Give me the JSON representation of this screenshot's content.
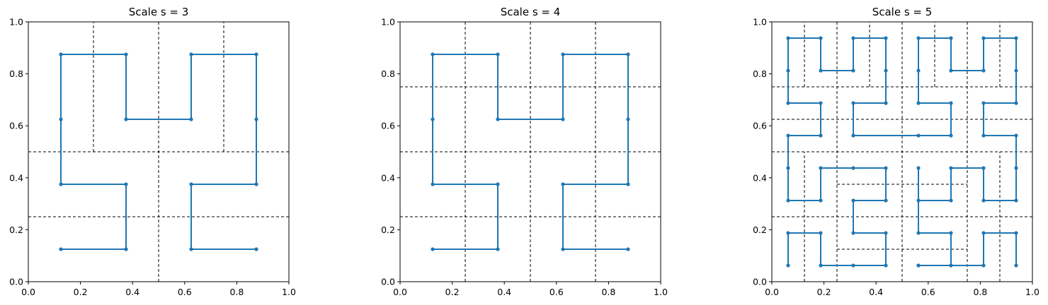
{
  "colors": {
    "curve": "#1f77b4",
    "separator": "#000000",
    "frame": "#000000"
  },
  "chart_data": [
    {
      "type": "line",
      "title": "Scale s = 3",
      "xlabel": "",
      "ylabel": "",
      "xlim": [
        0.0,
        1.0
      ],
      "ylim": [
        0.0,
        1.0
      ],
      "xticks": [
        "0.0",
        "0.2",
        "0.4",
        "0.6",
        "0.8",
        "1.0"
      ],
      "yticks": [
        "0.0",
        "0.2",
        "0.4",
        "0.6",
        "0.8",
        "1.0"
      ],
      "grid": false,
      "series": [
        {
          "marker": "dot",
          "x": [
            0.125,
            0.375,
            0.375,
            0.125,
            0.125,
            0.125,
            0.375,
            0.375,
            0.625,
            0.625,
            0.875,
            0.875,
            0.875,
            0.625,
            0.625,
            0.875
          ],
          "y": [
            0.125,
            0.125,
            0.375,
            0.375,
            0.625,
            0.875,
            0.875,
            0.625,
            0.625,
            0.875,
            0.875,
            0.625,
            0.375,
            0.375,
            0.125,
            0.125
          ]
        }
      ],
      "separators": [
        {
          "x1": 0.5,
          "y1": 0.0,
          "x2": 0.5,
          "y2": 1.0
        },
        {
          "x1": 0.0,
          "y1": 0.5,
          "x2": 1.0,
          "y2": 0.5
        },
        {
          "x1": 0.0,
          "y1": 0.25,
          "x2": 1.0,
          "y2": 0.25
        },
        {
          "x1": 0.25,
          "y1": 0.5,
          "x2": 0.25,
          "y2": 1.0
        },
        {
          "x1": 0.75,
          "y1": 0.5,
          "x2": 0.75,
          "y2": 1.0
        }
      ]
    },
    {
      "type": "line",
      "title": "Scale s = 4",
      "xlabel": "",
      "ylabel": "",
      "xlim": [
        0.0,
        1.0
      ],
      "ylim": [
        0.0,
        1.0
      ],
      "xticks": [
        "0.0",
        "0.2",
        "0.4",
        "0.6",
        "0.8",
        "1.0"
      ],
      "yticks": [
        "0.0",
        "0.2",
        "0.4",
        "0.6",
        "0.8",
        "1.0"
      ],
      "grid": false,
      "series": [
        {
          "marker": "dot",
          "x": [
            0.125,
            0.375,
            0.375,
            0.125,
            0.125,
            0.125,
            0.375,
            0.375,
            0.625,
            0.625,
            0.875,
            0.875,
            0.875,
            0.625,
            0.625,
            0.875
          ],
          "y": [
            0.125,
            0.125,
            0.375,
            0.375,
            0.625,
            0.875,
            0.875,
            0.625,
            0.625,
            0.875,
            0.875,
            0.625,
            0.375,
            0.375,
            0.125,
            0.125
          ]
        }
      ],
      "separators": [
        {
          "x1": 0.5,
          "y1": 0.0,
          "x2": 0.5,
          "y2": 1.0
        },
        {
          "x1": 0.25,
          "y1": 0.0,
          "x2": 0.25,
          "y2": 1.0
        },
        {
          "x1": 0.75,
          "y1": 0.0,
          "x2": 0.75,
          "y2": 1.0
        },
        {
          "x1": 0.0,
          "y1": 0.5,
          "x2": 1.0,
          "y2": 0.5
        },
        {
          "x1": 0.0,
          "y1": 0.25,
          "x2": 1.0,
          "y2": 0.25
        },
        {
          "x1": 0.0,
          "y1": 0.75,
          "x2": 1.0,
          "y2": 0.75
        }
      ]
    },
    {
      "type": "line",
      "title": "Scale s = 5",
      "xlabel": "",
      "ylabel": "",
      "xlim": [
        0.0,
        1.0
      ],
      "ylim": [
        0.0,
        1.0
      ],
      "xticks": [
        "0.0",
        "0.2",
        "0.4",
        "0.6",
        "0.8",
        "1.0"
      ],
      "yticks": [
        "0.0",
        "0.2",
        "0.4",
        "0.6",
        "0.8",
        "1.0"
      ],
      "grid": false,
      "series": [
        {
          "marker": "dot",
          "x": [
            0.0625,
            0.0625,
            0.1875,
            0.1875,
            0.3125,
            0.4375,
            0.4375,
            0.3125,
            0.3125,
            0.4375,
            0.4375,
            0.3125,
            0.1875,
            0.1875,
            0.0625,
            0.0625,
            0.0625,
            0.1875,
            0.1875,
            0.0625,
            0.0625,
            0.0625,
            0.1875,
            0.1875,
            0.3125,
            0.3125,
            0.4375,
            0.4375,
            0.4375,
            0.4375,
            0.3125,
            0.3125,
            0.5625,
            0.6875,
            0.6875,
            0.5625,
            0.5625,
            0.5625,
            0.6875,
            0.6875,
            0.8125,
            0.8125,
            0.9375,
            0.9375,
            0.9375,
            0.8125,
            0.8125,
            0.9375,
            0.9375,
            0.9375,
            0.8125,
            0.8125,
            0.6875,
            0.6875,
            0.5625,
            0.5625,
            0.5625,
            0.6875,
            0.6875,
            0.5625,
            0.5625,
            0.6875,
            0.8125,
            0.8125,
            0.9375,
            0.9375
          ],
          "y": [
            0.0625,
            0.1875,
            0.1875,
            0.0625,
            0.0625,
            0.0625,
            0.1875,
            0.1875,
            0.3125,
            0.3125,
            0.4375,
            0.4375,
            0.4375,
            0.3125,
            0.3125,
            0.4375,
            0.5625,
            0.5625,
            0.6875,
            0.6875,
            0.8125,
            0.9375,
            0.9375,
            0.8125,
            0.8125,
            0.9375,
            0.9375,
            0.8125,
            0.6875,
            0.6875,
            0.6875,
            0.5625,
            0.5625,
            0.5625,
            0.6875,
            0.6875,
            0.8125,
            0.9375,
            0.9375,
            0.8125,
            0.8125,
            0.9375,
            0.9375,
            0.8125,
            0.6875,
            0.6875,
            0.5625,
            0.5625,
            0.4375,
            0.3125,
            0.3125,
            0.4375,
            0.4375,
            0.3125,
            0.3125,
            0.4375,
            0.1875,
            0.1875,
            0.0625,
            0.0625,
            0.0625,
            0.0625,
            0.0625,
            0.1875,
            0.1875,
            0.0625
          ]
        }
      ],
      "separators": [
        {
          "x1": 0.5,
          "y1": 0.0,
          "x2": 0.5,
          "y2": 1.0
        },
        {
          "x1": 0.25,
          "y1": 0.0,
          "x2": 0.25,
          "y2": 1.0
        },
        {
          "x1": 0.75,
          "y1": 0.0,
          "x2": 0.75,
          "y2": 1.0
        },
        {
          "x1": 0.0,
          "y1": 0.5,
          "x2": 1.0,
          "y2": 0.5
        },
        {
          "x1": 0.0,
          "y1": 0.25,
          "x2": 1.0,
          "y2": 0.25
        },
        {
          "x1": 0.0,
          "y1": 0.75,
          "x2": 1.0,
          "y2": 0.75
        },
        {
          "x1": 0.125,
          "y1": 0.0,
          "x2": 0.125,
          "y2": 0.5
        },
        {
          "x1": 0.875,
          "y1": 0.0,
          "x2": 0.875,
          "y2": 0.5
        },
        {
          "x1": 0.125,
          "y1": 0.75,
          "x2": 0.125,
          "y2": 1.0
        },
        {
          "x1": 0.375,
          "y1": 0.75,
          "x2": 0.375,
          "y2": 1.0
        },
        {
          "x1": 0.625,
          "y1": 0.75,
          "x2": 0.625,
          "y2": 1.0
        },
        {
          "x1": 0.875,
          "y1": 0.75,
          "x2": 0.875,
          "y2": 1.0
        },
        {
          "x1": 0.0,
          "y1": 0.625,
          "x2": 1.0,
          "y2": 0.625
        },
        {
          "x1": 0.25,
          "y1": 0.375,
          "x2": 0.75,
          "y2": 0.375
        },
        {
          "x1": 0.25,
          "y1": 0.125,
          "x2": 0.75,
          "y2": 0.125
        }
      ]
    }
  ]
}
